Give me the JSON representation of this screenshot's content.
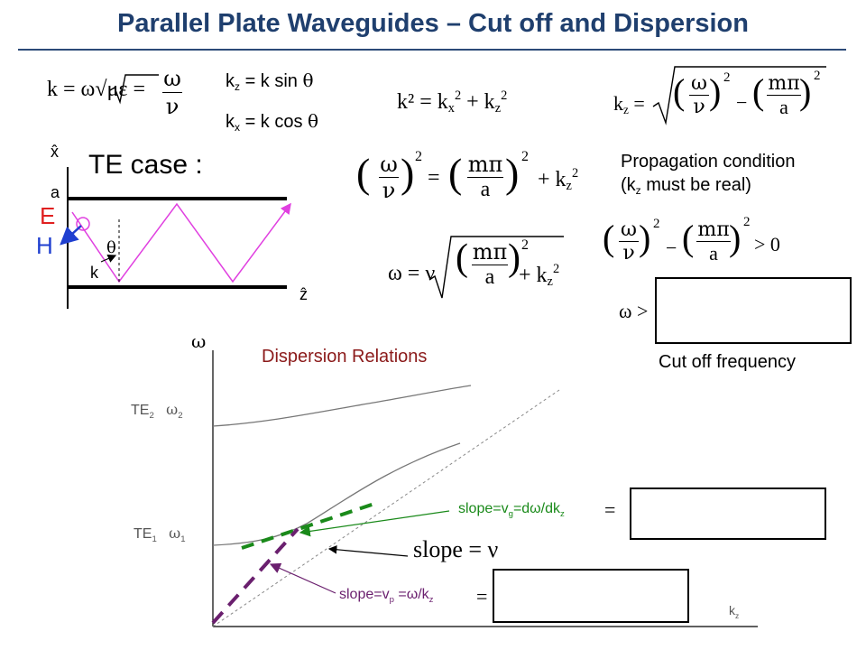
{
  "title": "Parallel Plate Waveguides – Cut off and Dispersion",
  "equations": {
    "k_def_left": "k = ω√με = ",
    "k_def_num": "ω",
    "k_def_den": "ν",
    "kz_sin": "= k sin ",
    "kx_cos": "= k cos ",
    "theta": "θ",
    "k_label": "k",
    "z_sub": "z",
    "x_sub": "x",
    "k_sq_sum": "k² = k",
    "k_sq_plus": "+ k",
    "sq": "2",
    "omega_nu_lhs": "ω",
    "nu": "ν",
    "m_pi": "mπ",
    "a": "a",
    "equals": "=",
    "plus": "+",
    "minus": "−",
    "omega_eq_lhs": "ω = ν",
    "kz_lhs": "k",
    "gt_zero": "> 0",
    "omega_gt": "ω >"
  },
  "propagation": {
    "line1": "Propagation condition",
    "line2_pre": "(k",
    "line2_sub": "z",
    "line2_post": " must be real)"
  },
  "cutoff_label": "Cut off frequency",
  "diagram": {
    "te_case": "TE case :",
    "x_hat": "x̂",
    "z_hat": "ẑ",
    "a_label": "a",
    "E_label": "E",
    "H_label": "H",
    "k_label": "k",
    "theta_label": "θ"
  },
  "dispersion": {
    "heading": "Dispersion Relations",
    "omega_axis": "ω",
    "kz_axis": "k",
    "kz_sub": "z",
    "te2": "TE",
    "te2_sub": "2",
    "omega2": "ω",
    "omega2_sub": "2",
    "te1": "TE",
    "te1_sub": "1",
    "omega1": "ω",
    "omega1_sub": "1",
    "slope_g_pre": "slope=v",
    "slope_g_sub": "g",
    "slope_g_mid": "=dω/dk",
    "slope_g_sub2": "z",
    "slope_p_pre": "slope=v",
    "slope_p_sub": "p",
    "slope_p_mid": " =ω/k",
    "slope_p_sub2": "z",
    "slope_nu": "slope = ν",
    "equals": "="
  },
  "colors": {
    "title": "#1f3f6e",
    "heading": "#8b1a1a",
    "green": "#1a8a1a",
    "purple": "#6a1f6e",
    "magenta": "#e040e0",
    "E_red": "#e02020",
    "H_blue": "#1f3fd0"
  }
}
